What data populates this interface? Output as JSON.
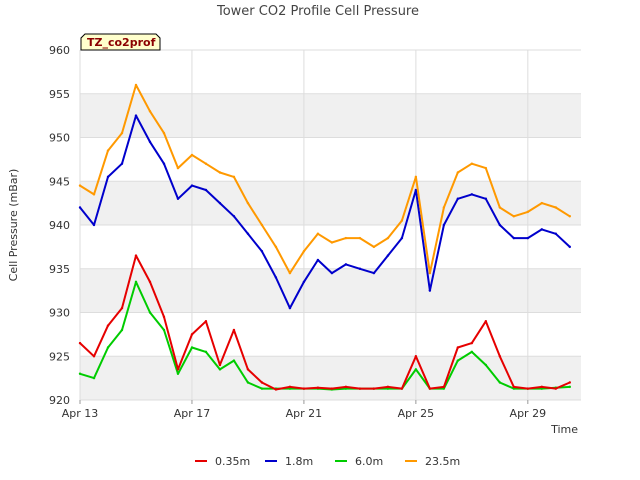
{
  "chart_data": {
    "type": "line",
    "title": "Tower CO2 Profile Cell Pressure",
    "xlabel": "Time",
    "ylabel": "Cell Pressure (mBar)",
    "site_tag": "TZ_co2prof",
    "x_ticks": [
      {
        "day": 13,
        "label": "Apr 13"
      },
      {
        "day": 17,
        "label": "Apr 17"
      },
      {
        "day": 21,
        "label": "Apr 21"
      },
      {
        "day": 25,
        "label": "Apr 25"
      },
      {
        "day": 29,
        "label": "Apr 29"
      }
    ],
    "xlim": [
      "Apr 13",
      "Apr 30.9"
    ],
    "ylim": [
      920,
      960
    ],
    "y_ticks": [
      920,
      925,
      930,
      935,
      940,
      945,
      950,
      955,
      960
    ],
    "grid": true,
    "legend_position": "bottom",
    "x_days": [
      13.0,
      13.5,
      14.0,
      14.5,
      15.0,
      15.5,
      16.0,
      16.5,
      17.0,
      17.5,
      18.0,
      18.5,
      19.0,
      19.5,
      20.0,
      20.5,
      21.0,
      21.5,
      22.0,
      22.5,
      23.0,
      23.5,
      24.0,
      24.5,
      25.0,
      25.5,
      26.0,
      26.5,
      27.0,
      27.5,
      28.0,
      28.5,
      29.0,
      29.5,
      30.0,
      30.5
    ],
    "series": [
      {
        "name": "0.35m",
        "color": "#e60000",
        "values": [
          926.5,
          925.0,
          928.5,
          930.5,
          936.5,
          933.5,
          929.5,
          923.5,
          927.5,
          929.0,
          924.0,
          928.0,
          923.5,
          922.0,
          921.2,
          921.5,
          921.3,
          921.4,
          921.3,
          921.5,
          921.3,
          921.3,
          921.5,
          921.3,
          925.0,
          921.3,
          921.5,
          926.0,
          926.5,
          929.0,
          925.0,
          921.5,
          921.3,
          921.5,
          921.3,
          922.0
        ]
      },
      {
        "name": "1.8m",
        "color": "#0000cc",
        "values": [
          942.0,
          940.0,
          945.5,
          947.0,
          952.5,
          949.5,
          947.0,
          943.0,
          944.5,
          944.0,
          942.5,
          941.0,
          939.0,
          937.0,
          934.0,
          930.5,
          933.5,
          936.0,
          934.5,
          935.5,
          935.0,
          934.5,
          936.5,
          938.5,
          944.0,
          932.5,
          940.0,
          943.0,
          943.5,
          943.0,
          940.0,
          938.5,
          938.5,
          939.5,
          939.0,
          937.5
        ]
      },
      {
        "name": "6.0m",
        "color": "#00cc00",
        "values": [
          923.0,
          922.5,
          926.0,
          928.0,
          933.5,
          930.0,
          928.0,
          923.0,
          926.0,
          925.5,
          923.5,
          924.5,
          922.0,
          921.3,
          921.3,
          921.3,
          921.3,
          921.3,
          921.2,
          921.3,
          921.3,
          921.3,
          921.3,
          921.3,
          923.5,
          921.3,
          921.3,
          924.5,
          925.5,
          924.0,
          922.0,
          921.3,
          921.3,
          921.3,
          921.4,
          921.5
        ]
      },
      {
        "name": "23.5m",
        "color": "#ff9900",
        "values": [
          944.5,
          943.5,
          948.5,
          950.5,
          956.0,
          953.0,
          950.5,
          946.5,
          948.0,
          947.0,
          946.0,
          945.5,
          942.5,
          940.0,
          937.5,
          934.5,
          937.0,
          939.0,
          938.0,
          938.5,
          938.5,
          937.5,
          938.5,
          940.5,
          945.5,
          934.5,
          942.0,
          946.0,
          947.0,
          946.5,
          942.0,
          941.0,
          941.5,
          942.5,
          942.0,
          941.0
        ]
      }
    ]
  }
}
